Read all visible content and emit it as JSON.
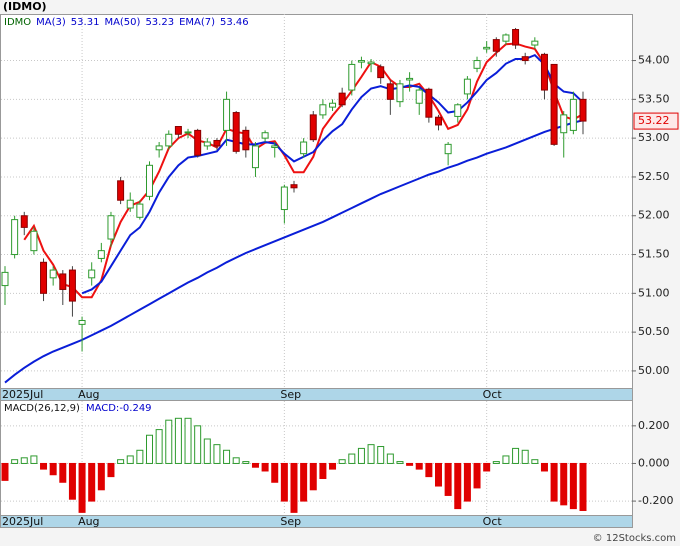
{
  "chart_data": [
    {
      "type": "candlestick",
      "title": "(IDMO)",
      "symbol": "IDMO",
      "categories": [
        "2025Jul",
        null,
        null,
        null,
        null,
        null,
        null,
        null,
        "Aug",
        null,
        null,
        null,
        null,
        null,
        null,
        null,
        null,
        null,
        null,
        null,
        null,
        null,
        null,
        null,
        null,
        null,
        null,
        null,
        null,
        "Sep",
        null,
        null,
        null,
        null,
        null,
        null,
        null,
        null,
        null,
        null,
        null,
        null,
        null,
        null,
        null,
        null,
        null,
        null,
        null,
        null,
        "Oct",
        null,
        null,
        null,
        null,
        null,
        null,
        null,
        null,
        null,
        null
      ],
      "open": [
        51.1,
        51.5,
        52.0,
        51.55,
        51.4,
        51.2,
        51.25,
        51.3,
        50.6,
        51.2,
        51.45,
        51.7,
        52.45,
        52.1,
        51.98,
        52.25,
        52.85,
        52.9,
        53.15,
        53.07,
        53.1,
        52.9,
        52.97,
        53.1,
        53.33,
        53.1,
        52.62,
        53.0,
        52.88,
        52.08,
        52.4,
        52.8,
        53.3,
        53.3,
        53.4,
        53.58,
        53.62,
        53.98,
        53.96,
        53.92,
        53.7,
        53.47,
        53.75,
        53.45,
        53.63,
        53.27,
        52.8,
        53.28,
        53.57,
        53.9,
        54.15,
        54.27,
        54.25,
        54.4,
        54.05,
        54.2,
        54.08,
        53.95,
        53.07,
        53.1,
        53.5
      ],
      "high": [
        51.35,
        52.0,
        52.05,
        51.85,
        51.45,
        51.35,
        51.3,
        51.35,
        50.7,
        51.4,
        51.65,
        52.05,
        52.5,
        52.3,
        52.2,
        52.7,
        52.95,
        53.1,
        53.15,
        53.12,
        53.12,
        53.0,
        53.0,
        53.6,
        53.35,
        53.15,
        52.95,
        53.1,
        52.95,
        52.4,
        52.45,
        53.0,
        53.35,
        53.5,
        53.5,
        53.65,
        54.0,
        54.05,
        54.02,
        53.95,
        53.75,
        53.75,
        53.85,
        53.65,
        53.65,
        53.3,
        52.95,
        53.45,
        53.8,
        54.05,
        54.25,
        54.3,
        54.35,
        54.42,
        54.1,
        54.3,
        54.1,
        53.95,
        53.35,
        53.6,
        53.6
      ],
      "low": [
        50.85,
        51.45,
        51.75,
        51.5,
        50.9,
        51.1,
        50.85,
        50.7,
        50.25,
        51.1,
        51.4,
        51.6,
        52.15,
        52.05,
        51.95,
        52.2,
        52.75,
        52.85,
        53.0,
        53.0,
        52.75,
        52.85,
        52.85,
        52.9,
        52.8,
        52.75,
        52.5,
        52.95,
        52.75,
        51.9,
        52.3,
        52.75,
        52.95,
        53.25,
        53.35,
        53.4,
        53.55,
        53.9,
        53.85,
        53.7,
        53.3,
        53.4,
        53.6,
        53.3,
        53.2,
        53.1,
        52.65,
        53.2,
        53.5,
        53.85,
        54.1,
        54.05,
        54.2,
        54.15,
        53.95,
        54.15,
        53.5,
        52.9,
        52.75,
        53.05,
        53.05
      ],
      "close": [
        51.27,
        51.95,
        51.85,
        51.8,
        51.0,
        51.3,
        51.05,
        50.9,
        50.65,
        51.3,
        51.55,
        52.0,
        52.2,
        52.2,
        52.15,
        52.65,
        52.9,
        53.05,
        53.05,
        53.08,
        52.78,
        52.95,
        52.9,
        53.5,
        52.83,
        52.85,
        52.9,
        53.07,
        52.9,
        52.37,
        52.36,
        52.95,
        52.98,
        53.43,
        53.45,
        53.43,
        53.95,
        54.0,
        53.98,
        53.78,
        53.5,
        53.7,
        53.77,
        53.62,
        53.27,
        53.17,
        52.92,
        53.43,
        53.76,
        54.0,
        54.17,
        54.12,
        54.33,
        54.2,
        54.0,
        54.25,
        53.62,
        52.92,
        53.3,
        53.5,
        53.22
      ],
      "up_color": "#2e9a2e",
      "down_color": "#e00000",
      "series": [
        {
          "name": "MA(3)",
          "last": 53.31,
          "color": "#ee1111",
          "values": [
            null,
            null,
            51.69,
            51.87,
            51.55,
            51.37,
            51.12,
            51.08,
            50.95,
            50.95,
            51.17,
            51.62,
            51.92,
            52.13,
            52.18,
            52.33,
            52.57,
            52.87,
            53.0,
            53.06,
            52.97,
            52.94,
            52.88,
            53.12,
            53.08,
            53.06,
            52.86,
            52.94,
            52.96,
            52.78,
            52.56,
            52.56,
            52.76,
            53.12,
            53.29,
            53.44,
            53.61,
            53.79,
            53.98,
            53.92,
            53.75,
            53.66,
            53.66,
            53.7,
            53.55,
            53.35,
            53.12,
            53.17,
            53.37,
            53.73,
            53.98,
            54.1,
            54.21,
            54.22,
            54.18,
            54.15,
            53.96,
            53.6,
            53.28,
            53.24,
            53.31
          ]
        },
        {
          "name": "MA(50)",
          "last": 53.23,
          "color": "#0a1ed8",
          "values": [
            49.85,
            49.95,
            50.04,
            50.12,
            50.19,
            50.25,
            50.3,
            50.35,
            50.4,
            50.46,
            50.52,
            50.58,
            50.65,
            50.72,
            50.79,
            50.86,
            50.93,
            51.0,
            51.07,
            51.14,
            51.2,
            51.27,
            51.33,
            51.4,
            51.46,
            51.52,
            51.57,
            51.62,
            51.67,
            51.72,
            51.77,
            51.82,
            51.87,
            51.92,
            51.98,
            52.04,
            52.1,
            52.16,
            52.22,
            52.28,
            52.33,
            52.38,
            52.43,
            52.48,
            52.53,
            52.57,
            52.62,
            52.66,
            52.71,
            52.75,
            52.8,
            52.84,
            52.88,
            52.93,
            52.98,
            53.03,
            53.08,
            53.12,
            53.16,
            53.2,
            53.23
          ]
        },
        {
          "name": "EMA(7)",
          "last": 53.46,
          "color": "#0a1ed8",
          "values": [
            null,
            null,
            null,
            null,
            null,
            null,
            null,
            null,
            51.0,
            51.05,
            51.15,
            51.35,
            51.55,
            51.75,
            51.85,
            52.05,
            52.3,
            52.5,
            52.65,
            52.75,
            52.77,
            52.8,
            52.83,
            52.98,
            52.95,
            52.92,
            52.92,
            52.95,
            52.93,
            52.8,
            52.7,
            52.76,
            52.82,
            52.97,
            53.09,
            53.18,
            53.37,
            53.53,
            53.64,
            53.67,
            53.63,
            53.65,
            53.68,
            53.66,
            53.56,
            53.46,
            53.33,
            53.35,
            53.46,
            53.6,
            53.75,
            53.84,
            53.96,
            54.02,
            54.02,
            54.07,
            53.95,
            53.7,
            53.6,
            53.58,
            53.46
          ]
        }
      ],
      "ylim": [
        49.78,
        54.6
      ],
      "yticks": [
        {
          "value": 50,
          "label": "50.00"
        },
        {
          "value": 50.5,
          "label": "50.50"
        },
        {
          "value": 51,
          "label": "51.00"
        },
        {
          "value": 51.5,
          "label": "51.50"
        },
        {
          "value": 52,
          "label": "52.00"
        },
        {
          "value": 52.5,
          "label": "52.50"
        },
        {
          "value": 53,
          "label": "53.00"
        },
        {
          "value": 53.5,
          "label": "53.50"
        },
        {
          "value": 54,
          "label": "54.00"
        }
      ],
      "grid": true
    },
    {
      "type": "bar",
      "title": "MACD(26,12,9)",
      "macd_label": "MACD:",
      "macd_value": -0.249,
      "values": [
        -0.09,
        0.02,
        0.03,
        0.04,
        -0.03,
        -0.06,
        -0.1,
        -0.19,
        -0.26,
        -0.2,
        -0.14,
        -0.07,
        0.02,
        0.04,
        0.07,
        0.15,
        0.18,
        0.23,
        0.24,
        0.24,
        0.2,
        0.13,
        0.1,
        0.07,
        0.03,
        0.01,
        -0.02,
        -0.04,
        -0.1,
        -0.2,
        -0.26,
        -0.2,
        -0.14,
        -0.08,
        -0.03,
        0.02,
        0.05,
        0.08,
        0.1,
        0.09,
        0.05,
        0.01,
        -0.01,
        -0.03,
        -0.07,
        -0.12,
        -0.17,
        -0.24,
        -0.2,
        -0.13,
        -0.04,
        0.01,
        0.04,
        0.08,
        0.07,
        0.02,
        -0.04,
        -0.2,
        -0.22,
        -0.24,
        -0.25
      ],
      "up_color": "#2e9a2e",
      "down_color": "#e00000",
      "ylim": [
        -0.274,
        0.332
      ],
      "yticks": [
        {
          "value": -0.2,
          "label": "-0.200"
        },
        {
          "value": 0,
          "label": "0.000"
        },
        {
          "value": 0.2,
          "label": "0.200"
        }
      ],
      "grid": true,
      "watermark": "© 12Stocks.com"
    }
  ]
}
